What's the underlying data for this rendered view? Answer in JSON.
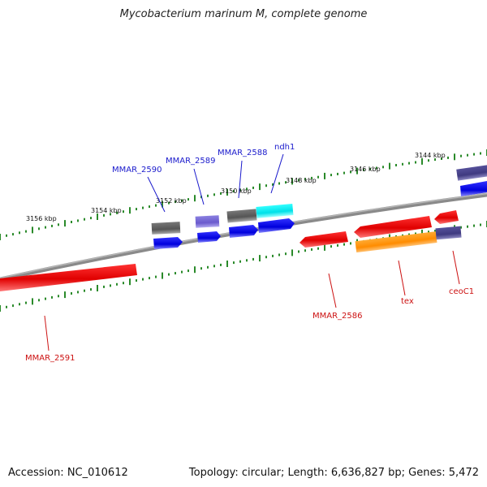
{
  "title": "Mycobacterium marinum M, complete genome",
  "footer": {
    "accession": "Accession: NC_010612",
    "info": "Topology: circular; Length: 6,636,827 bp; Genes: 5,472"
  },
  "colors": {
    "backbone": "#7a7a7a",
    "tick": "#2a8a2a",
    "forward_label": "#1a1acc",
    "reverse_label": "#cc1111"
  },
  "ticks": [
    {
      "label": "3156 kbp"
    },
    {
      "label": "3154 kbp"
    },
    {
      "label": "3152 kbp"
    },
    {
      "label": "3150 kbp"
    },
    {
      "label": "3148 kbp"
    },
    {
      "label": "3146 kbp"
    },
    {
      "label": "3144 kbp"
    }
  ],
  "gene_labels": {
    "mmar_2590": "MMAR_2590",
    "mmar_2589": "MMAR_2589",
    "mmar_2588": "MMAR_2588",
    "ndh1": "ndh1",
    "mmar_2586": "MMAR_2586",
    "tex": "tex",
    "ceoc1": "ceoC1",
    "mmar_2591": "MMAR_2591"
  }
}
